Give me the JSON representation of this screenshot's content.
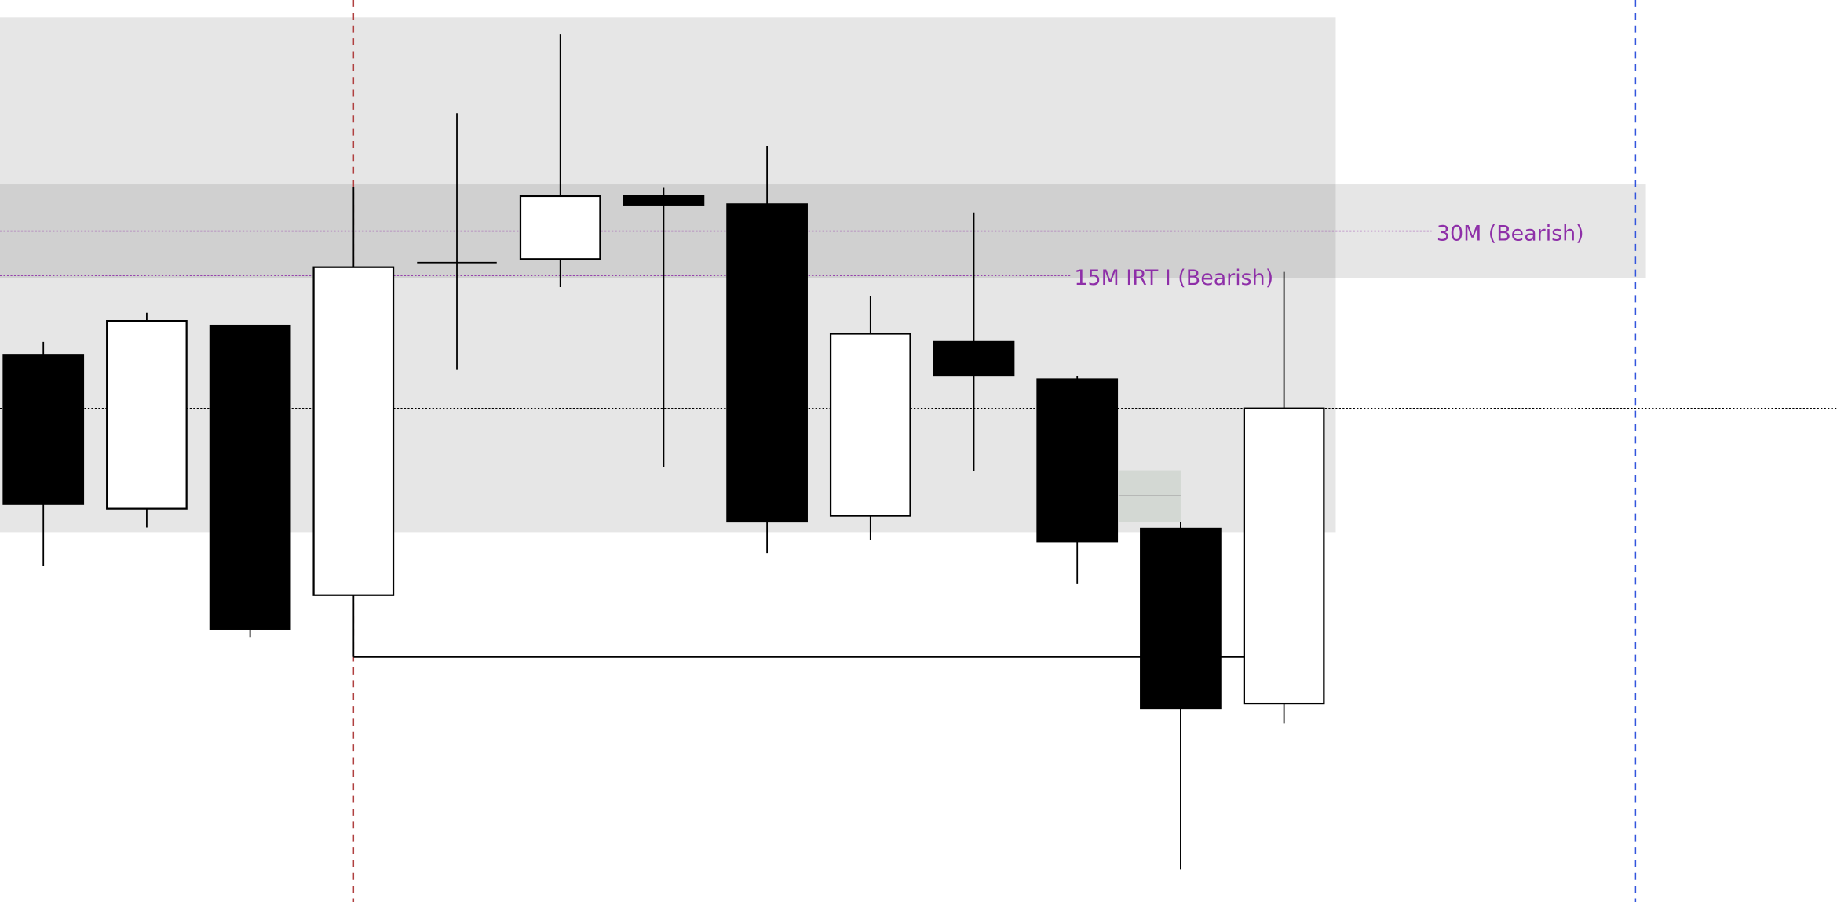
{
  "chart_data": {
    "type": "candlestick",
    "title": "",
    "xlabel": "",
    "ylabel": "",
    "ylim": [
      227,
      971
    ],
    "grid": false,
    "colors": {
      "bullish_body": "#ffffff",
      "bearish_body": "#000000",
      "wick": "#000000",
      "zone_light": "#e6e6e6",
      "zone_dark": "#d0d0d0",
      "zone_small": "#d3d8d3",
      "level_line": "#8e2fa8",
      "vline_left": "#b04040",
      "vline_right": "#3355dd"
    },
    "candles": [
      {
        "open": 696,
        "high": 707,
        "low": 515,
        "close": 568
      },
      {
        "open": 564,
        "high": 732,
        "low": 548,
        "close": 725
      },
      {
        "open": 721,
        "high": 721,
        "low": 454,
        "close": 461
      },
      {
        "open": 490,
        "high": 840,
        "low": 437,
        "close": 771
      },
      {
        "open": 775,
        "high": 903,
        "low": 683,
        "close": 775
      },
      {
        "open": 778,
        "high": 971,
        "low": 754,
        "close": 832
      },
      {
        "open": 832,
        "high": 839,
        "low": 600,
        "close": 824
      },
      {
        "open": 825,
        "high": 875,
        "low": 526,
        "close": 553
      },
      {
        "open": 558,
        "high": 746,
        "low": 537,
        "close": 714
      },
      {
        "open": 707,
        "high": 818,
        "low": 596,
        "close": 678
      },
      {
        "open": 675,
        "high": 678,
        "low": 500,
        "close": 536
      },
      {
        "open": 547,
        "high": 553,
        "low": 255,
        "close": 393
      },
      {
        "open": 397,
        "high": 767,
        "low": 380,
        "close": 650
      }
    ],
    "zones": [
      {
        "from_candle": 0,
        "to_candle": 12.5,
        "top": 985,
        "bottom": 544,
        "style": "light"
      },
      {
        "from_candle": 0,
        "to_candle": 12.5,
        "top": 842,
        "bottom": 762,
        "style": "dark"
      },
      {
        "from_candle": 12.5,
        "to_candle": 15.5,
        "top": 842,
        "bottom": 762,
        "style": "light"
      },
      {
        "from_candle": 10.4,
        "to_candle": 11,
        "top": 597,
        "bottom": 553,
        "mid": 575,
        "style": "small"
      }
    ],
    "levels": [
      {
        "label": "30M (Bearish)",
        "price": 802,
        "style": "dotted-purple"
      },
      {
        "label": "15M IRT I (Bearish)",
        "price": 764,
        "style": "dotted-purple"
      },
      {
        "label": "",
        "price": 650,
        "style": "dotted-black"
      }
    ],
    "vertical_markers": [
      {
        "candle": 3,
        "style": "dashed-red"
      },
      {
        "candle": 15.4,
        "style": "dashed-blue"
      }
    ],
    "connector": {
      "from_candle": 3,
      "to_candle": 12,
      "price": 437
    }
  }
}
